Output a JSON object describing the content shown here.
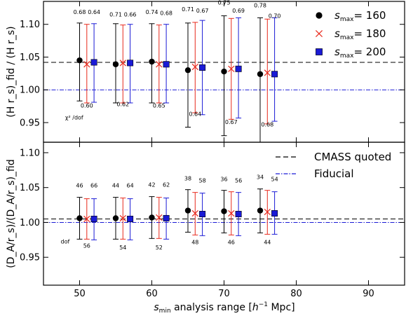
{
  "chart_data": {
    "type": "scatter",
    "xlabel": "s_min analysis range [h^-1 Mpc]",
    "xlabel_parts": {
      "sym": "s",
      "sub": "min",
      "mid": " analysis range [",
      "h": "h",
      "sup": "−1",
      "tail": " Mpc]"
    },
    "xlim": [
      45,
      95
    ],
    "xticks": [
      50,
      60,
      70,
      80,
      90
    ],
    "panels": [
      {
        "id": "top",
        "ylabel": "(H r_s)_fid / (H r_s)",
        "ylim": [
          0.92,
          1.135
        ],
        "yticks": [
          0.95,
          1.0,
          1.05,
          1.1
        ],
        "ytick_labels": [
          "0.95",
          "1.00",
          "1.05",
          "1.10"
        ],
        "reference_lines": {
          "cmass_quoted": 1.042,
          "fiducial": 1.0
        },
        "series": [
          {
            "name": "s_max = 160",
            "marker": "circle",
            "color": "#000000",
            "points": [
              {
                "x": 50,
                "y": 1.045,
                "lo": 0.983,
                "hi": 1.102
              },
              {
                "x": 55,
                "y": 1.039,
                "lo": 0.98,
                "hi": 1.101
              },
              {
                "x": 60,
                "y": 1.043,
                "lo": 0.98,
                "hi": 1.101
              },
              {
                "x": 65,
                "y": 1.03,
                "lo": 0.943,
                "hi": 1.102
              },
              {
                "x": 70,
                "y": 1.028,
                "lo": 0.93,
                "hi": 1.113
              },
              {
                "x": 75,
                "y": 1.024,
                "lo": 0.92,
                "hi": 1.11
              }
            ]
          },
          {
            "name": "s_max = 180",
            "marker": "x",
            "color": "#e8291c",
            "points": [
              {
                "x": 51,
                "y": 1.039,
                "lo": 0.98,
                "hi": 1.1
              },
              {
                "x": 56,
                "y": 1.041,
                "lo": 0.98,
                "hi": 1.099
              },
              {
                "x": 61,
                "y": 1.039,
                "lo": 0.98,
                "hi": 1.099
              },
              {
                "x": 66,
                "y": 1.035,
                "lo": 0.965,
                "hi": 1.103
              },
              {
                "x": 71,
                "y": 1.032,
                "lo": 0.955,
                "hi": 1.109
              },
              {
                "x": 76,
                "y": 1.026,
                "lo": 0.948,
                "hi": 1.108
              }
            ]
          },
          {
            "name": "s_max = 200",
            "marker": "square",
            "color": "#1a1ad6",
            "points": [
              {
                "x": 52,
                "y": 1.042,
                "lo": 0.981,
                "hi": 1.101
              },
              {
                "x": 57,
                "y": 1.041,
                "lo": 0.98,
                "hi": 1.1
              },
              {
                "x": 62,
                "y": 1.039,
                "lo": 0.98,
                "hi": 1.1
              },
              {
                "x": 67,
                "y": 1.034,
                "lo": 0.962,
                "hi": 1.106
              },
              {
                "x": 72,
                "y": 1.032,
                "lo": 0.957,
                "hi": 1.11
              },
              {
                "x": 77,
                "y": 1.024,
                "lo": 0.952,
                "hi": 1.11
              }
            ]
          }
        ],
        "annotations": [
          {
            "text": "0.68",
            "x": 50,
            "y": 1.116
          },
          {
            "text": "0.64",
            "x": 52,
            "y": 1.116
          },
          {
            "text": "0.71",
            "x": 55,
            "y": 1.112
          },
          {
            "text": "0.66",
            "x": 57,
            "y": 1.112
          },
          {
            "text": "0.74",
            "x": 60,
            "y": 1.116
          },
          {
            "text": "0.68",
            "x": 62,
            "y": 1.114
          },
          {
            "text": "0.71",
            "x": 65,
            "y": 1.12
          },
          {
            "text": "0.67",
            "x": 67,
            "y": 1.118
          },
          {
            "text": "0.75",
            "x": 70,
            "y": 1.13
          },
          {
            "text": "0.69",
            "x": 72,
            "y": 1.118
          },
          {
            "text": "0.78",
            "x": 75,
            "y": 1.126
          },
          {
            "text": "0.70",
            "x": 77,
            "y": 1.11
          },
          {
            "text": "0.60",
            "x": 51,
            "y": 0.973
          },
          {
            "text": "0.62",
            "x": 56,
            "y": 0.975
          },
          {
            "text": "0.65",
            "x": 61,
            "y": 0.973
          },
          {
            "text": "0.64",
            "x": 66,
            "y": 0.96
          },
          {
            "text": "0.67",
            "x": 71,
            "y": 0.948
          },
          {
            "text": "0.68",
            "x": 76,
            "y": 0.944
          },
          {
            "text": "χ² /dof",
            "x": 48,
            "y": 0.955
          }
        ]
      },
      {
        "id": "bottom",
        "ylabel": "(D_A/r_s)/(D_A/r_s)_fid",
        "ylim": [
          0.91,
          1.115
        ],
        "yticks": [
          0.95,
          1.0,
          1.05,
          1.1
        ],
        "ytick_labels": [
          "0.95",
          "1.00",
          "1.05",
          "1.10"
        ],
        "reference_lines": {
          "cmass_quoted": 1.005,
          "fiducial": 1.0
        },
        "series": [
          {
            "name": "s_max = 160",
            "marker": "circle",
            "color": "#000000",
            "points": [
              {
                "x": 50,
                "y": 1.006,
                "lo": 0.976,
                "hi": 1.036
              },
              {
                "x": 55,
                "y": 1.006,
                "lo": 0.976,
                "hi": 1.036
              },
              {
                "x": 60,
                "y": 1.007,
                "lo": 0.977,
                "hi": 1.037
              },
              {
                "x": 65,
                "y": 1.017,
                "lo": 0.986,
                "hi": 1.047
              },
              {
                "x": 70,
                "y": 1.016,
                "lo": 0.985,
                "hi": 1.046
              },
              {
                "x": 75,
                "y": 1.017,
                "lo": 0.985,
                "hi": 1.048
              }
            ]
          },
          {
            "name": "s_max = 180",
            "marker": "x",
            "color": "#e8291c",
            "points": [
              {
                "x": 51,
                "y": 1.005,
                "lo": 0.976,
                "hi": 1.034
              },
              {
                "x": 56,
                "y": 1.006,
                "lo": 0.976,
                "hi": 1.035
              },
              {
                "x": 61,
                "y": 1.007,
                "lo": 0.977,
                "hi": 1.036
              },
              {
                "x": 66,
                "y": 1.013,
                "lo": 0.982,
                "hi": 1.043
              },
              {
                "x": 71,
                "y": 1.013,
                "lo": 0.982,
                "hi": 1.044
              },
              {
                "x": 76,
                "y": 1.015,
                "lo": 0.983,
                "hi": 1.046
              }
            ]
          },
          {
            "name": "s_max = 200",
            "marker": "square",
            "color": "#1a1ad6",
            "points": [
              {
                "x": 52,
                "y": 1.005,
                "lo": 0.975,
                "hi": 1.034
              },
              {
                "x": 57,
                "y": 1.005,
                "lo": 0.975,
                "hi": 1.034
              },
              {
                "x": 62,
                "y": 1.006,
                "lo": 0.976,
                "hi": 1.035
              },
              {
                "x": 67,
                "y": 1.012,
                "lo": 0.981,
                "hi": 1.042
              },
              {
                "x": 72,
                "y": 1.012,
                "lo": 0.981,
                "hi": 1.043
              },
              {
                "x": 77,
                "y": 1.013,
                "lo": 0.983,
                "hi": 1.044
              }
            ]
          }
        ],
        "annotations": [
          {
            "text": "46",
            "x": 50,
            "y": 1.05
          },
          {
            "text": "66",
            "x": 52,
            "y": 1.05
          },
          {
            "text": "44",
            "x": 55,
            "y": 1.05
          },
          {
            "text": "64",
            "x": 57,
            "y": 1.05
          },
          {
            "text": "42",
            "x": 60,
            "y": 1.051
          },
          {
            "text": "62",
            "x": 62,
            "y": 1.051
          },
          {
            "text": "38",
            "x": 65,
            "y": 1.06
          },
          {
            "text": "58",
            "x": 67,
            "y": 1.057
          },
          {
            "text": "36",
            "x": 70,
            "y": 1.059
          },
          {
            "text": "56",
            "x": 72,
            "y": 1.057
          },
          {
            "text": "34",
            "x": 75,
            "y": 1.062
          },
          {
            "text": "54",
            "x": 77,
            "y": 1.059
          },
          {
            "text": "56",
            "x": 51,
            "y": 0.964
          },
          {
            "text": "54",
            "x": 56,
            "y": 0.961
          },
          {
            "text": "52",
            "x": 61,
            "y": 0.961
          },
          {
            "text": "48",
            "x": 66,
            "y": 0.969
          },
          {
            "text": "46",
            "x": 71,
            "y": 0.969
          },
          {
            "text": "44",
            "x": 76,
            "y": 0.969
          },
          {
            "text": "dof",
            "x": 48,
            "y": 0.97
          }
        ]
      }
    ],
    "legend_top": {
      "placement": "top-right",
      "entries": [
        {
          "marker": "circle",
          "color": "#000000",
          "sym": "s",
          "sub": "max",
          "value": "= 160"
        },
        {
          "marker": "x",
          "color": "#e8291c",
          "sym": "s",
          "sub": "max",
          "value": "= 180"
        },
        {
          "marker": "square",
          "color": "#1a1ad6",
          "sym": "s",
          "sub": "max",
          "value": "= 200"
        }
      ]
    },
    "legend_bottom": {
      "placement": "top-right",
      "entries": [
        {
          "line": "dashed",
          "color": "#000000",
          "label": "CMASS quoted"
        },
        {
          "line": "dashdot",
          "color": "#1a1ad6",
          "label": "Fiducial"
        }
      ]
    },
    "line_colors": {
      "cmass_quoted": "#000000",
      "fiducial": "#1a1ad6"
    },
    "grid": false
  }
}
